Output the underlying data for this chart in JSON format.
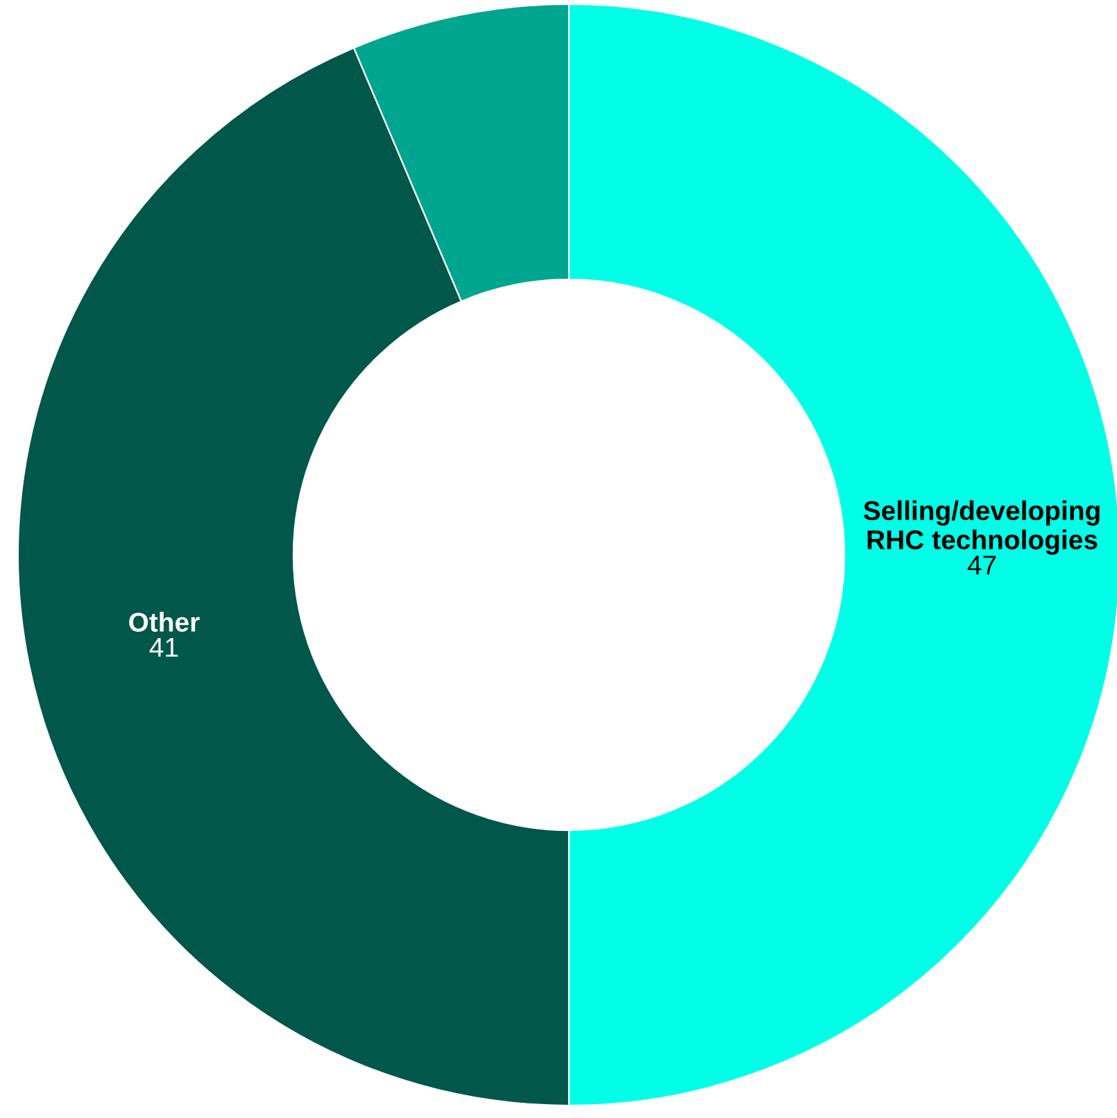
{
  "chart_data": {
    "type": "donut",
    "categories": [
      "Selling/developing\nRHC technologies",
      "Other",
      null
    ],
    "values": [
      47,
      41,
      6
    ],
    "value_labels": [
      "47",
      "41",
      null
    ],
    "colors": [
      "#00ffe6",
      "#00574a",
      "#00a58f"
    ]
  }
}
